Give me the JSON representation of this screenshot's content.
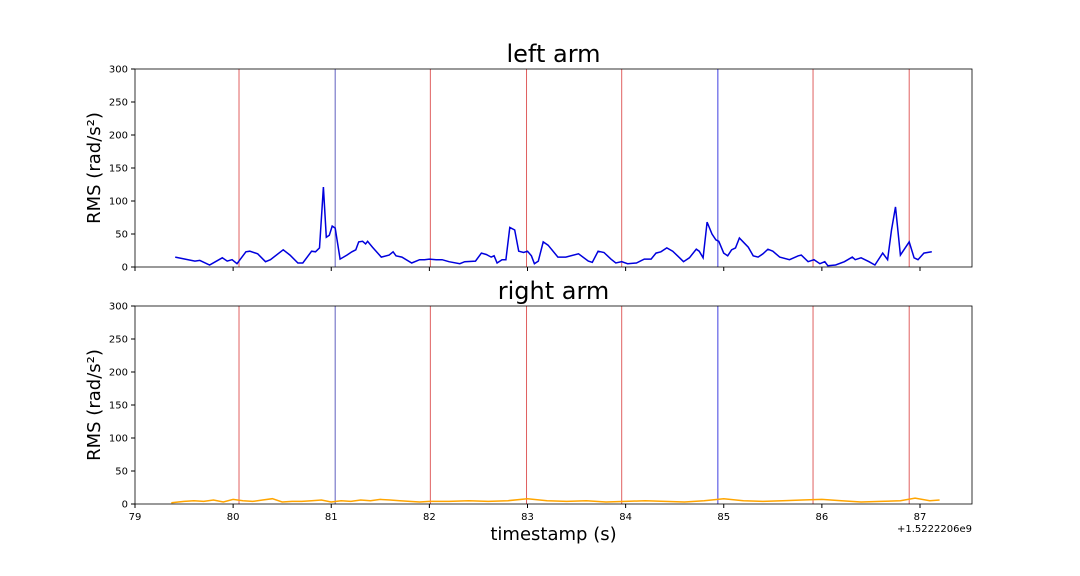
{
  "chart_data": [
    {
      "type": "line",
      "title": "left arm",
      "y_label": "RMS (rad/s²)",
      "x": [
        79.41,
        79.61,
        79.66,
        79.76,
        79.89,
        79.94,
        79.99,
        80.04,
        80.13,
        80.17,
        80.25,
        80.33,
        80.38,
        80.51,
        80.58,
        80.66,
        80.71,
        80.8,
        80.84,
        80.88,
        80.92,
        80.95,
        80.98,
        81.01,
        81.04,
        81.09,
        81.16,
        81.21,
        81.25,
        81.28,
        81.32,
        81.35,
        81.37,
        81.42,
        81.51,
        81.59,
        81.63,
        81.66,
        81.72,
        81.82,
        81.9,
        81.95,
        82.0,
        82.07,
        82.13,
        82.2,
        82.31,
        82.36,
        82.47,
        82.53,
        82.58,
        82.63,
        82.66,
        82.69,
        82.74,
        82.78,
        82.82,
        82.87,
        82.91,
        82.96,
        83.0,
        83.04,
        83.07,
        83.11,
        83.16,
        83.21,
        83.31,
        83.39,
        83.52,
        83.62,
        83.66,
        83.72,
        83.78,
        83.85,
        83.9,
        83.96,
        84.02,
        84.11,
        84.19,
        84.26,
        84.31,
        84.36,
        84.42,
        84.48,
        84.55,
        84.59,
        84.65,
        84.72,
        84.75,
        84.79,
        84.83,
        84.88,
        84.92,
        84.95,
        85.0,
        85.04,
        85.08,
        85.12,
        85.16,
        85.21,
        85.25,
        85.3,
        85.35,
        85.4,
        85.45,
        85.5,
        85.57,
        85.67,
        85.76,
        85.79,
        85.86,
        85.92,
        85.98,
        86.03,
        86.06,
        86.14,
        86.23,
        86.31,
        86.34,
        86.4,
        86.48,
        86.54,
        86.62,
        86.67,
        86.71,
        86.75,
        86.8,
        86.89,
        86.94,
        86.98,
        87.04,
        87.12
      ],
      "series": [
        {
          "color": "#0000dd",
          "values": [
            15,
            9,
            10,
            3,
            14,
            9,
            11,
            5,
            23,
            24,
            20,
            8,
            11,
            26,
            18,
            6,
            6,
            24,
            23,
            29,
            121,
            45,
            48,
            62,
            59,
            12,
            18,
            23,
            26,
            38,
            39,
            35,
            39,
            30,
            15,
            18,
            23,
            17,
            15,
            6,
            11,
            11,
            12,
            11,
            11,
            8,
            5,
            8,
            9,
            21,
            19,
            15,
            17,
            6,
            11,
            11,
            60,
            56,
            24,
            22,
            24,
            17,
            5,
            9,
            38,
            33,
            15,
            15,
            20,
            9,
            7,
            24,
            22,
            12,
            6,
            8,
            5,
            6,
            12,
            12,
            21,
            23,
            29,
            24,
            14,
            8,
            14,
            27,
            24,
            14,
            68,
            50,
            41,
            39,
            21,
            17,
            26,
            29,
            44,
            36,
            30,
            17,
            15,
            20,
            27,
            24,
            15,
            11,
            17,
            18,
            8,
            11,
            5,
            8,
            2,
            3,
            8,
            15,
            11,
            14,
            8,
            3,
            21,
            11,
            56,
            91,
            18,
            38,
            14,
            11,
            21,
            23
          ]
        }
      ],
      "vlines": [
        {
          "value": 80.06,
          "color": "#e06060"
        },
        {
          "value": 81.04,
          "color": "#6060c0"
        },
        {
          "value": 82.01,
          "color": "#e06060"
        },
        {
          "value": 82.99,
          "color": "#e06060"
        },
        {
          "value": 83.96,
          "color": "#e06060"
        },
        {
          "value": 84.94,
          "color": "#4040e0"
        },
        {
          "value": 85.91,
          "color": "#e06060"
        },
        {
          "value": 86.89,
          "color": "#e06060"
        }
      ],
      "xlim": [
        79,
        87.53
      ],
      "ylim": [
        0,
        300
      ],
      "yticks": [
        0,
        50,
        100,
        150,
        200,
        250,
        300
      ]
    },
    {
      "type": "line",
      "title": "right arm",
      "y_label": "RMS (rad/s²)",
      "x_label": "timestamp (s)",
      "x_offset_label": "+1.5222206e9",
      "x": [
        79.37,
        79.5,
        79.6,
        79.7,
        79.8,
        79.9,
        80.0,
        80.1,
        80.2,
        80.3,
        80.4,
        80.5,
        80.6,
        80.7,
        80.8,
        80.9,
        81.0,
        81.1,
        81.2,
        81.3,
        81.4,
        81.5,
        81.6,
        81.7,
        81.8,
        81.9,
        82.0,
        82.2,
        82.4,
        82.6,
        82.8,
        83.0,
        83.2,
        83.4,
        83.6,
        83.8,
        84.0,
        84.2,
        84.4,
        84.6,
        84.8,
        85.0,
        85.2,
        85.4,
        85.6,
        85.8,
        86.0,
        86.2,
        86.4,
        86.6,
        86.8,
        86.95,
        87.1,
        87.2
      ],
      "series": [
        {
          "color": "#ffa500",
          "values": [
            2,
            4,
            5,
            4,
            6,
            3,
            7,
            5,
            4,
            6,
            8,
            3,
            4,
            4,
            5,
            6,
            3,
            5,
            4,
            6,
            5,
            7,
            6,
            5,
            4,
            3,
            4,
            4,
            5,
            4,
            5,
            8,
            5,
            4,
            5,
            3,
            4,
            5,
            4,
            3,
            5,
            8,
            5,
            4,
            5,
            6,
            7,
            5,
            3,
            4,
            5,
            9,
            5,
            6
          ]
        }
      ],
      "vlines": [
        {
          "value": 80.06,
          "color": "#e06060"
        },
        {
          "value": 81.04,
          "color": "#6060c0"
        },
        {
          "value": 82.01,
          "color": "#e06060"
        },
        {
          "value": 82.99,
          "color": "#e06060"
        },
        {
          "value": 83.96,
          "color": "#e06060"
        },
        {
          "value": 84.94,
          "color": "#4040e0"
        },
        {
          "value": 85.91,
          "color": "#e06060"
        },
        {
          "value": 86.89,
          "color": "#e06060"
        }
      ],
      "xlim": [
        79,
        87.53
      ],
      "ylim": [
        0,
        300
      ],
      "yticks": [
        0,
        50,
        100,
        150,
        200,
        250,
        300
      ],
      "xticks": [
        79,
        80,
        81,
        82,
        83,
        84,
        85,
        86,
        87
      ]
    }
  ]
}
